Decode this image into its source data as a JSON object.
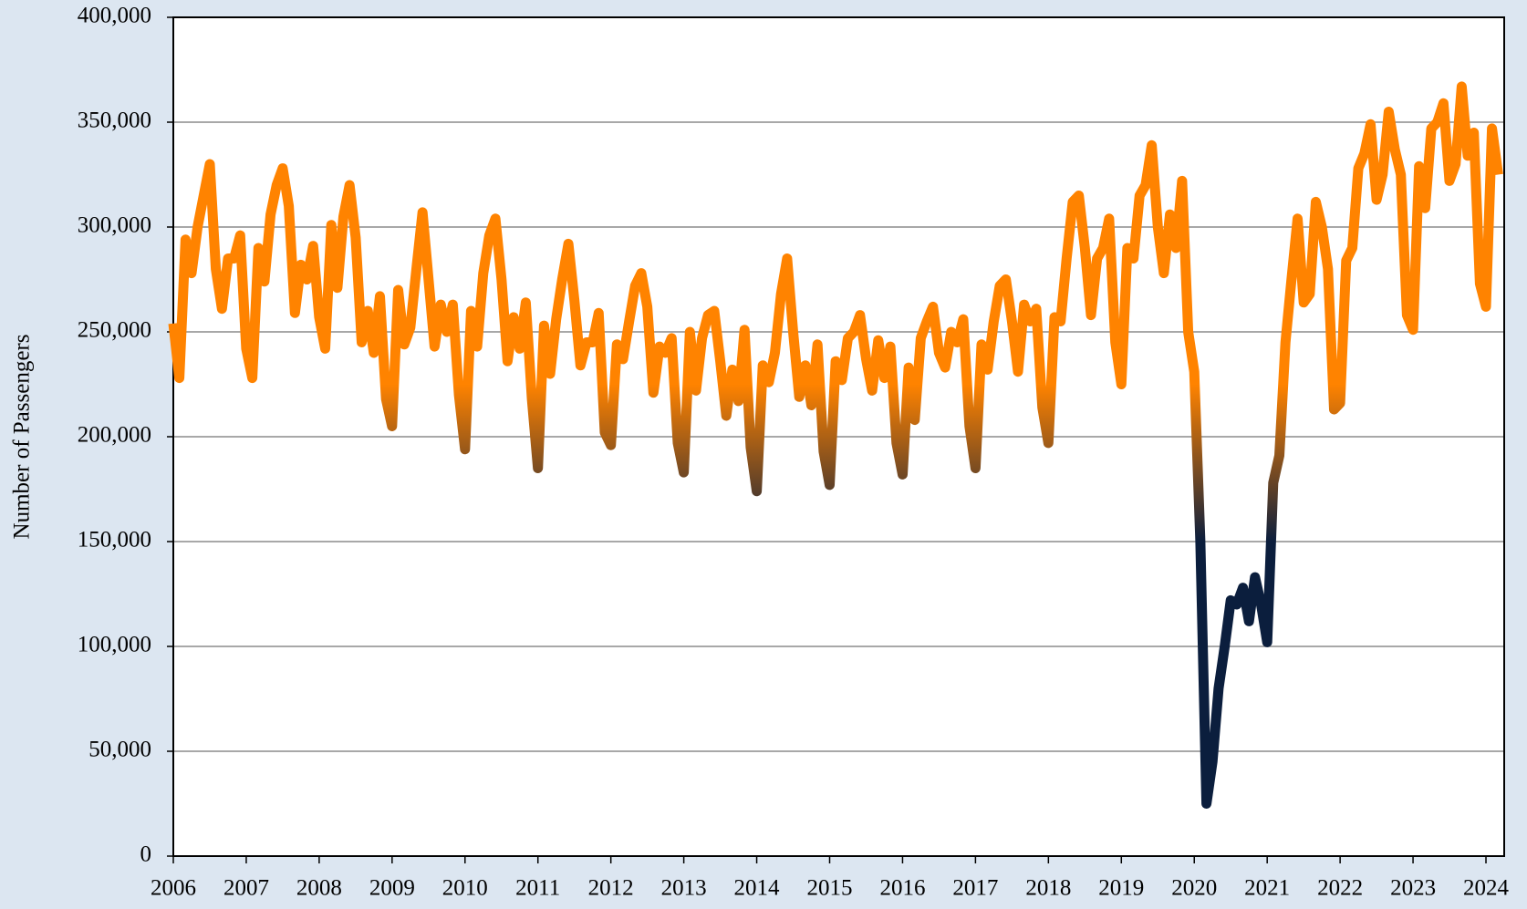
{
  "chart_data": {
    "type": "line",
    "ylabel": "Number of Passengers",
    "x": [
      2006,
      2006.083,
      2006.167,
      2006.25,
      2006.333,
      2006.417,
      2006.5,
      2006.583,
      2006.667,
      2006.75,
      2006.833,
      2006.917,
      2007,
      2007.083,
      2007.167,
      2007.25,
      2007.333,
      2007.417,
      2007.5,
      2007.583,
      2007.667,
      2007.75,
      2007.833,
      2007.917,
      2008,
      2008.083,
      2008.167,
      2008.25,
      2008.333,
      2008.417,
      2008.5,
      2008.583,
      2008.667,
      2008.75,
      2008.833,
      2008.917,
      2009,
      2009.083,
      2009.167,
      2009.25,
      2009.333,
      2009.417,
      2009.5,
      2009.583,
      2009.667,
      2009.75,
      2009.833,
      2009.917,
      2010,
      2010.083,
      2010.167,
      2010.25,
      2010.333,
      2010.417,
      2010.5,
      2010.583,
      2010.667,
      2010.75,
      2010.833,
      2010.917,
      2011,
      2011.083,
      2011.167,
      2011.25,
      2011.333,
      2011.417,
      2011.5,
      2011.583,
      2011.667,
      2011.75,
      2011.833,
      2011.917,
      2012,
      2012.083,
      2012.167,
      2012.25,
      2012.333,
      2012.417,
      2012.5,
      2012.583,
      2012.667,
      2012.75,
      2012.833,
      2012.917,
      2013,
      2013.083,
      2013.167,
      2013.25,
      2013.333,
      2013.417,
      2013.5,
      2013.583,
      2013.667,
      2013.75,
      2013.833,
      2013.917,
      2014,
      2014.083,
      2014.167,
      2014.25,
      2014.333,
      2014.417,
      2014.5,
      2014.583,
      2014.667,
      2014.75,
      2014.833,
      2014.917,
      2015,
      2015.083,
      2015.167,
      2015.25,
      2015.333,
      2015.417,
      2015.5,
      2015.583,
      2015.667,
      2015.75,
      2015.833,
      2015.917,
      2016,
      2016.083,
      2016.167,
      2016.25,
      2016.333,
      2016.417,
      2016.5,
      2016.583,
      2016.667,
      2016.75,
      2016.833,
      2016.917,
      2017,
      2017.083,
      2017.167,
      2017.25,
      2017.333,
      2017.417,
      2017.5,
      2017.583,
      2017.667,
      2017.75,
      2017.833,
      2017.917,
      2018,
      2018.083,
      2018.167,
      2018.25,
      2018.333,
      2018.417,
      2018.5,
      2018.583,
      2018.667,
      2018.75,
      2018.833,
      2018.917,
      2019,
      2019.083,
      2019.167,
      2019.25,
      2019.333,
      2019.417,
      2019.5,
      2019.583,
      2019.667,
      2019.75,
      2019.833,
      2019.917,
      2020,
      2020.083,
      2020.167,
      2020.25,
      2020.333,
      2020.417,
      2020.5,
      2020.583,
      2020.667,
      2020.75,
      2020.833,
      2020.917,
      2021,
      2021.083,
      2021.167,
      2021.25,
      2021.333,
      2021.417,
      2021.5,
      2021.583,
      2021.667,
      2021.75,
      2021.833,
      2021.917,
      2022,
      2022.083,
      2022.167,
      2022.25,
      2022.333,
      2022.417,
      2022.5,
      2022.583,
      2022.667,
      2022.75,
      2022.833,
      2022.917,
      2023,
      2023.083,
      2023.167,
      2023.25,
      2023.333,
      2023.417,
      2023.5,
      2023.583,
      2023.667,
      2023.75,
      2023.833,
      2023.917,
      2024,
      2024.083,
      2024.167
    ],
    "values": [
      254000,
      228000,
      294000,
      278000,
      300000,
      315000,
      330000,
      280000,
      261000,
      285000,
      285000,
      296000,
      242000,
      228000,
      290000,
      274000,
      306000,
      320000,
      328000,
      310000,
      259000,
      282000,
      275000,
      291000,
      257000,
      242000,
      301000,
      271000,
      305000,
      320000,
      295000,
      245000,
      260000,
      240000,
      267000,
      218000,
      205000,
      270000,
      244000,
      252000,
      280000,
      307000,
      275000,
      243000,
      263000,
      250000,
      263000,
      220000,
      194000,
      260000,
      243000,
      278000,
      296000,
      304000,
      275000,
      236000,
      257000,
      242000,
      264000,
      218000,
      185000,
      253000,
      230000,
      256000,
      275000,
      292000,
      265000,
      234000,
      245000,
      245000,
      259000,
      202000,
      196000,
      244000,
      237000,
      255000,
      272000,
      278000,
      262000,
      221000,
      243000,
      240000,
      247000,
      197000,
      183000,
      250000,
      222000,
      247000,
      258000,
      260000,
      236000,
      210000,
      232000,
      217000,
      251000,
      195000,
      174000,
      234000,
      226000,
      240000,
      268000,
      285000,
      250000,
      219000,
      234000,
      215000,
      244000,
      193000,
      177000,
      236000,
      227000,
      247000,
      250000,
      258000,
      237000,
      222000,
      246000,
      228000,
      243000,
      197000,
      182000,
      233000,
      208000,
      247000,
      255000,
      262000,
      240000,
      233000,
      250000,
      245000,
      256000,
      205000,
      185000,
      244000,
      232000,
      255000,
      272000,
      275000,
      255000,
      231000,
      263000,
      255000,
      261000,
      214000,
      197000,
      257000,
      255000,
      285000,
      312000,
      315000,
      290000,
      258000,
      285000,
      290000,
      304000,
      245000,
      225000,
      290000,
      285000,
      315000,
      320000,
      339000,
      300000,
      278000,
      306000,
      290000,
      322000,
      250000,
      231000,
      150000,
      25000,
      45000,
      80000,
      100000,
      122000,
      120000,
      128000,
      112000,
      133000,
      120000,
      102000,
      178000,
      191000,
      245000,
      275000,
      304000,
      264000,
      268000,
      312000,
      300000,
      280000,
      213000,
      216000,
      284000,
      290000,
      328000,
      335000,
      349000,
      313000,
      325000,
      355000,
      337000,
      325000,
      258000,
      251000,
      329000,
      309000,
      347000,
      350000,
      359000,
      322000,
      330000,
      367000,
      334000,
      345000,
      273000,
      262000,
      347000,
      325000
    ],
    "gradient": [
      {
        "value": 150000,
        "color": "#0b1e3d"
      },
      {
        "value": 225000,
        "color": "#ff8300"
      }
    ],
    "xlim": [
      2006,
      2024.25
    ],
    "xticks": [
      2006,
      2007,
      2008,
      2009,
      2010,
      2011,
      2012,
      2013,
      2014,
      2015,
      2016,
      2017,
      2018,
      2019,
      2020,
      2021,
      2022,
      2023,
      2024
    ],
    "ylim": [
      0,
      400000
    ],
    "yticks": [
      0,
      {
        "value": 50000,
        "label": "50,000"
      },
      {
        "value": 100000,
        "label": "100,000"
      },
      {
        "value": 150000,
        "label": "150,000"
      },
      {
        "value": 200000,
        "label": "200,000"
      },
      {
        "value": 250000,
        "label": "250,000"
      },
      {
        "value": 300000,
        "label": "300,000"
      },
      {
        "value": 350000,
        "label": "350,000"
      },
      {
        "value": 400000,
        "label": "400,000"
      }
    ],
    "grid": true
  }
}
